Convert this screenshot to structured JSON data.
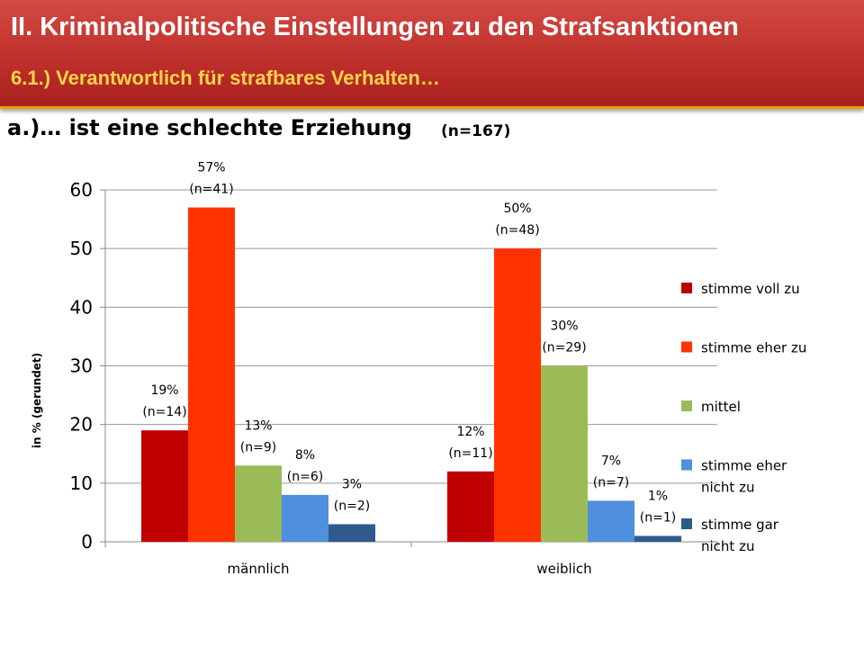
{
  "header": {
    "title": "II. Kriminalpolitische  Einstellungen zu den Strafsanktionen",
    "subtitle": "6.1.) Verantwortlich für strafbares Verhalten…"
  },
  "section": {
    "title": "a.)… ist eine schlechte Erziehung",
    "sample_size": "(n=167)"
  },
  "colors": {
    "header_bg": "#c0302b",
    "header_underline": "#e8a200",
    "subtitle": "#ffd34a"
  },
  "chart_data": {
    "type": "bar",
    "categories": [
      "männlich",
      "weiblich"
    ],
    "series": [
      {
        "name": "stimme voll zu",
        "color": "#c00000",
        "values": [
          19,
          12
        ],
        "labels": [
          [
            "19%",
            "(n=14)"
          ],
          [
            "12%",
            "(n=11)"
          ]
        ]
      },
      {
        "name": "stimme eher zu",
        "color": "#ff3300",
        "values": [
          57,
          50
        ],
        "labels": [
          [
            "57%",
            "(n=41)"
          ],
          [
            "50%",
            "(n=48)"
          ]
        ]
      },
      {
        "name": "mittel",
        "color": "#9bbb59",
        "values": [
          13,
          30
        ],
        "labels": [
          [
            "13%",
            "(n=9)"
          ],
          [
            "30%",
            "(n=29)"
          ]
        ]
      },
      {
        "name": "stimme eher nicht zu",
        "color": "#4f8fdd",
        "values": [
          8,
          7
        ],
        "labels": [
          [
            "8%",
            "(n=6)"
          ],
          [
            "7%",
            "(n=7)"
          ]
        ]
      },
      {
        "name": "stimme gar nicht zu",
        "color": "#2e5a8e",
        "values": [
          3,
          1
        ],
        "labels": [
          [
            "3%",
            "(n=2)"
          ],
          [
            "1%",
            "(n=1)"
          ]
        ]
      }
    ],
    "ylabel": "in % (gerundet)",
    "xlabel": "",
    "ylim": [
      0,
      60
    ],
    "yticks": [
      0,
      10,
      20,
      30,
      40,
      50,
      60
    ],
    "grid": true,
    "legend_position": "right"
  }
}
